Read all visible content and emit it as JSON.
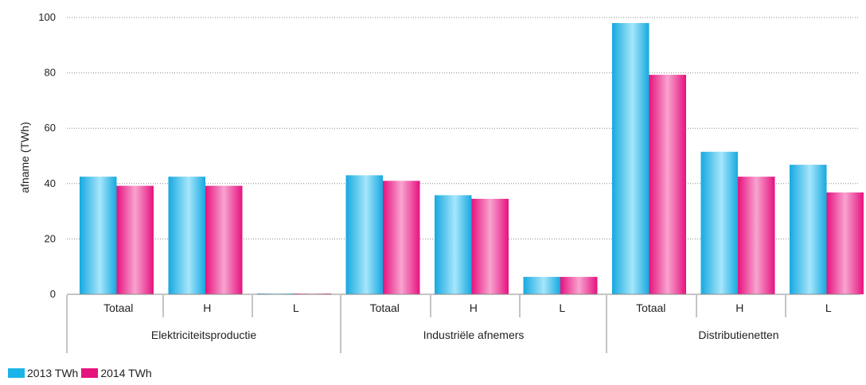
{
  "chart_data": {
    "type": "bar",
    "ylabel": "afname (TWh)",
    "xlabel": "",
    "ylim": [
      0,
      100
    ],
    "yticks": [
      0,
      20,
      40,
      60,
      80,
      100
    ],
    "grid": true,
    "legend_position": "bottom-left",
    "groups": [
      {
        "label": "Elektriciteitsproductie",
        "subcategories": [
          "Totaal",
          "H",
          "L"
        ]
      },
      {
        "label": "Industriële afnemers",
        "subcategories": [
          "Totaal",
          "H",
          "L"
        ]
      },
      {
        "label": "Distributienetten",
        "subcategories": [
          "Totaal",
          "H",
          "L"
        ]
      }
    ],
    "categories": [
      "Totaal",
      "H",
      "L",
      "Totaal",
      "H",
      "L",
      "Totaal",
      "H",
      "L"
    ],
    "series": [
      {
        "name": "2013 TWh",
        "color": "#1ab4e8",
        "values": [
          42.5,
          42.5,
          0.3,
          43.0,
          35.8,
          6.3,
          98.0,
          51.5,
          46.8
        ]
      },
      {
        "name": "2014 TWh",
        "color": "#e6127e",
        "values": [
          39.2,
          39.2,
          0.2,
          41.0,
          34.5,
          6.3,
          79.3,
          42.5,
          36.8
        ]
      }
    ]
  }
}
